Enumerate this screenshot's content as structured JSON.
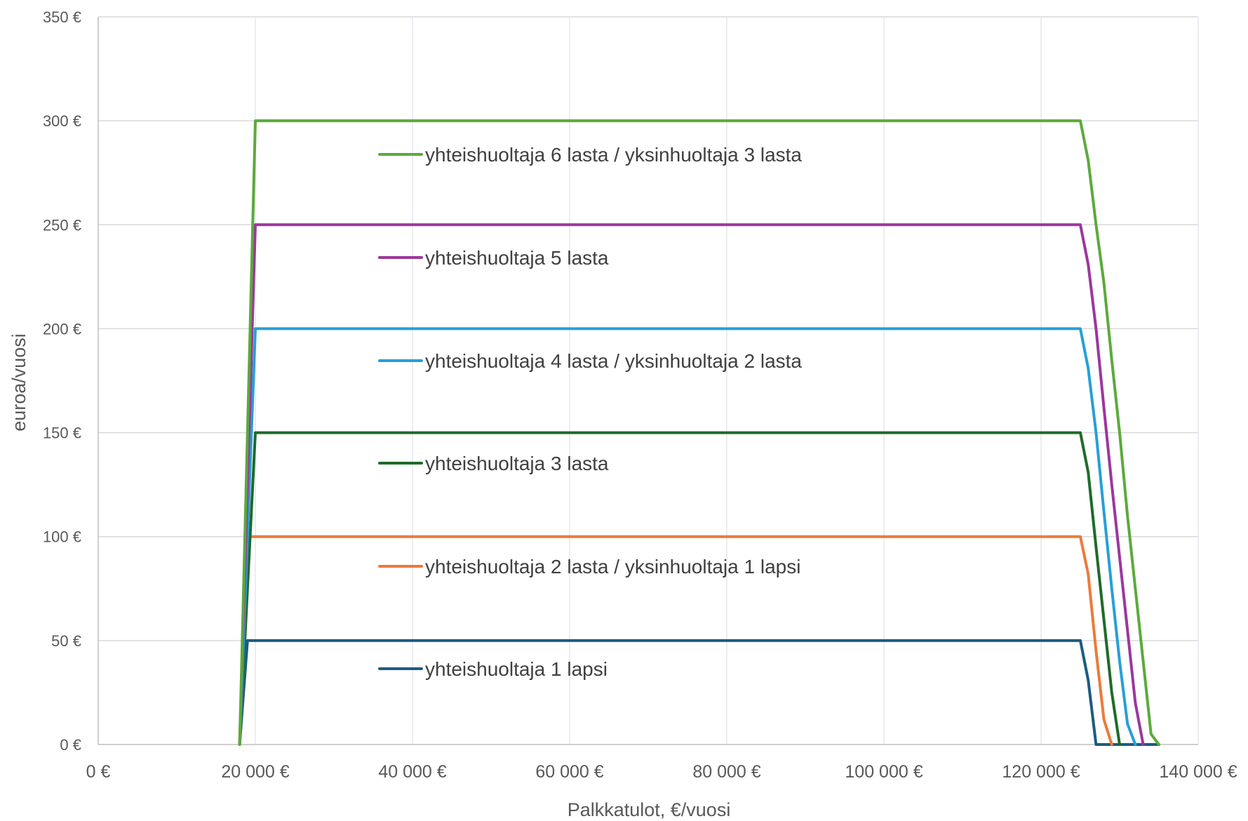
{
  "chart_data": {
    "type": "line",
    "title": "",
    "xlabel": "Palkkatulot, €/vuosi",
    "ylabel": "euroa/vuosi",
    "xlim": [
      0,
      140000
    ],
    "ylim": [
      0,
      350
    ],
    "x_ticks": [
      0,
      20000,
      40000,
      60000,
      80000,
      100000,
      120000,
      140000
    ],
    "x_tick_labels": [
      "0 €",
      "20 000 €",
      "40 000 €",
      "60 000 €",
      "80 000 €",
      "100 000 €",
      "120 000 €",
      "140 000 €"
    ],
    "y_ticks": [
      0,
      50,
      100,
      150,
      200,
      250,
      300,
      350
    ],
    "y_tick_labels": [
      "0 €",
      "50 €",
      "100 €",
      "150 €",
      "200 €",
      "250 €",
      "300 €",
      "350 €"
    ],
    "grid": true,
    "legend_placement": "inside, stacked entries under each line",
    "series": [
      {
        "name": "yhteishuoltaja 6 lasta / yksinhuoltaja 3 lasta",
        "color": "#5BAA3C",
        "x": [
          18000,
          20000,
          125000,
          126000,
          127000,
          128000,
          129000,
          130000,
          131000,
          132000,
          133000,
          134000,
          135000
        ],
        "y": [
          0,
          300,
          300,
          281,
          250,
          222,
          185,
          150,
          110,
          75,
          40,
          5,
          0
        ]
      },
      {
        "name": "yhteishuoltaja 5 lasta",
        "color": "#9B379E",
        "x": [
          18000,
          20000,
          125000,
          126000,
          127000,
          128000,
          129000,
          130000,
          131000,
          132000,
          133000
        ],
        "y": [
          0,
          250,
          250,
          231,
          200,
          162,
          125,
          90,
          55,
          20,
          0
        ]
      },
      {
        "name": "yhteishuoltaja 4 lasta / yksinhuoltaja 2 lasta",
        "color": "#26A0D6",
        "x": [
          18000,
          20000,
          125000,
          126000,
          127000,
          128000,
          129000,
          130000,
          131000,
          132000
        ],
        "y": [
          0,
          200,
          200,
          181,
          150,
          112,
          75,
          40,
          10,
          0
        ]
      },
      {
        "name": "yhteishuoltaja 3 lasta",
        "color": "#1E6B29",
        "x": [
          18000,
          20000,
          125000,
          126000,
          127000,
          128000,
          129000,
          130000
        ],
        "y": [
          0,
          150,
          150,
          131,
          95,
          60,
          25,
          0
        ]
      },
      {
        "name": "yhteishuoltaja 2 lasta / yksinhuoltaja 1 lapsi",
        "color": "#ED7A3A",
        "x": [
          18000,
          19000,
          125000,
          126000,
          127000,
          128000,
          129000
        ],
        "y": [
          0,
          100,
          100,
          82,
          45,
          12,
          0
        ]
      },
      {
        "name": "yhteishuoltaja 1 lapsi",
        "color": "#1B5C82",
        "x": [
          18000,
          19000,
          125000,
          126000,
          127000,
          135000
        ],
        "y": [
          0,
          50,
          50,
          31,
          0,
          0
        ]
      }
    ]
  }
}
